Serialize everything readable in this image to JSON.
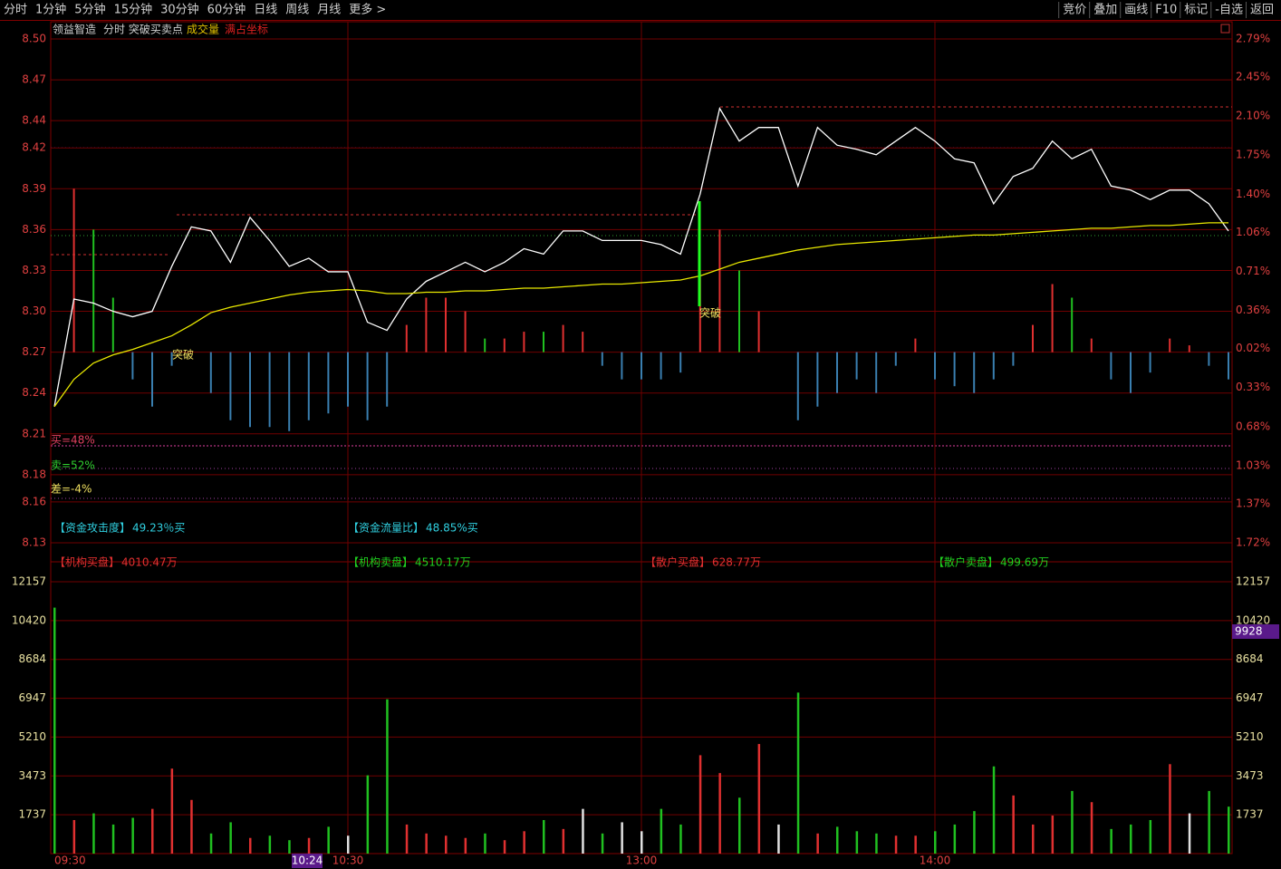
{
  "toolbar": {
    "left": [
      "分时",
      "1分钟",
      "5分钟",
      "15分钟",
      "30分钟",
      "60分钟",
      "日线",
      "周线",
      "月线",
      "更多 >"
    ],
    "right": [
      "竞价",
      "叠加",
      "画线",
      "F10",
      "标记",
      "-自选",
      "返回"
    ]
  },
  "chart_data": [
    {
      "type": "line",
      "title": "领益智造",
      "subtitle": "分时 突破买卖点",
      "notes": [
        {
          "text": "成交量",
          "color": "#e0c000"
        },
        {
          "text": "满占坐标",
          "color": "#e02020"
        }
      ],
      "series": [
        {
          "color": "#ffffff",
          "values": [
            8.23,
            8.309,
            8.306,
            8.3,
            8.296,
            8.3,
            8.333,
            8.362,
            8.359,
            8.336,
            8.369,
            8.352,
            8.333,
            8.339,
            8.329,
            8.329,
            8.292,
            8.286,
            8.309,
            8.322,
            8.329,
            8.336,
            8.329,
            8.336,
            8.346,
            8.342,
            8.359,
            8.359,
            8.352,
            8.352,
            8.352,
            8.349,
            8.342,
            8.386,
            8.449,
            8.425,
            8.435,
            8.435,
            8.392,
            8.435,
            8.422,
            8.419,
            8.415,
            8.425,
            8.435,
            8.425,
            8.412,
            8.409,
            8.379,
            8.399,
            8.405,
            8.425,
            8.412,
            8.419,
            8.392,
            8.389,
            8.382,
            8.389,
            8.389,
            8.379,
            8.359
          ]
        },
        {
          "color": "#e8e800",
          "values": [
            8.23,
            8.25,
            8.262,
            8.268,
            8.272,
            8.277,
            8.282,
            8.29,
            8.299,
            8.303,
            8.306,
            8.309,
            8.312,
            8.314,
            8.315,
            8.316,
            8.315,
            8.313,
            8.313,
            8.314,
            8.314,
            8.315,
            8.315,
            8.316,
            8.317,
            8.317,
            8.318,
            8.319,
            8.32,
            8.32,
            8.321,
            8.322,
            8.323,
            8.326,
            8.331,
            8.336,
            8.339,
            8.342,
            8.345,
            8.347,
            8.349,
            8.35,
            8.351,
            8.352,
            8.353,
            8.354,
            8.355,
            8.356,
            8.356,
            8.357,
            8.358,
            8.359,
            8.36,
            8.361,
            8.361,
            8.362,
            8.363,
            8.363,
            8.364,
            8.365,
            8.365
          ]
        }
      ],
      "histogram": {
        "base": 8.27,
        "up_color": "#e03030",
        "down_color": "#20c020",
        "neg_color": "#3a7fb0",
        "values": [
          0,
          0.12,
          0.09,
          0.04,
          -0.02,
          -0.04,
          -0.01,
          0,
          -0.03,
          -0.05,
          -0.055,
          -0.055,
          -0.058,
          -0.05,
          -0.045,
          -0.04,
          -0.05,
          -0.04,
          0.02,
          0.04,
          0.04,
          0.03,
          0.01,
          0.01,
          0.015,
          0.015,
          0.02,
          0.015,
          -0.01,
          -0.02,
          -0.02,
          -0.02,
          -0.015,
          0.06,
          0.09,
          0.06,
          0.03,
          0,
          -0.05,
          -0.04,
          -0.03,
          -0.02,
          -0.03,
          -0.01,
          0.01,
          -0.02,
          -0.025,
          -0.03,
          -0.02,
          -0.01,
          0.02,
          0.05,
          0.04,
          0.01,
          -0.02,
          -0.03,
          -0.015,
          0.01,
          0.005,
          -0.01,
          -0.02
        ]
      },
      "ylim": [
        8.13,
        8.5
      ],
      "yticks": [
        {
          "value": 8.5,
          "label": "8.50"
        },
        8.47,
        8.44,
        8.42,
        8.39,
        8.36,
        8.33,
        {
          "value": 8.3,
          "label": "8.30"
        },
        8.27,
        8.24,
        8.21,
        8.18,
        8.16,
        8.13
      ],
      "y2lim": [
        -1.72,
        2.79
      ],
      "y2ticks": [
        {
          "value": 2.79,
          "label": "2.79%"
        },
        {
          "value": 2.45,
          "label": "2.45%"
        },
        {
          "value": 2.1,
          "label": "2.10%"
        },
        {
          "value": 1.75,
          "label": "1.75%"
        },
        {
          "value": 1.4,
          "label": "1.40%"
        },
        {
          "value": 1.06,
          "label": "1.06%"
        },
        {
          "value": 0.71,
          "label": "0.71%"
        },
        {
          "value": 0.36,
          "label": "0.36%"
        },
        {
          "value": 0.02,
          "label": "0.02%"
        },
        {
          "value": -0.33,
          "label": "0.33%"
        },
        {
          "value": -0.68,
          "label": "0.68%"
        },
        {
          "value": -1.03,
          "label": "1.03%"
        },
        {
          "value": -1.37,
          "label": "1.37%"
        },
        {
          "value": -1.72,
          "label": "1.72%"
        }
      ],
      "annotations": [
        "突破",
        "突破"
      ],
      "stats": [
        "买=48%",
        "卖=52%",
        "差=-4%"
      ],
      "indicators": [
        {
          "label": "【资金攻击度】",
          "value": "49.23％买",
          "color": "#30d0e0"
        },
        {
          "label": "【资金流量比】",
          "value": "48.85%买",
          "color": "#30d0e0"
        },
        {
          "label": "【机构买盘】",
          "value": "4010.47万",
          "color": "#e03030"
        },
        {
          "label": "【机构卖盘】",
          "value": "4510.17万",
          "color": "#20d020"
        },
        {
          "label": "【散户买盘】",
          "value": "628.77万",
          "color": "#e03030"
        },
        {
          "label": "【散户卖盘】",
          "value": "499.69万",
          "color": "#20d020"
        }
      ]
    },
    {
      "type": "bar",
      "categories": [
        "09:30",
        null,
        null,
        null,
        null,
        null,
        null,
        null,
        null,
        null,
        null,
        null,
        null,
        null,
        null,
        "10:30",
        null,
        null,
        null,
        null,
        null,
        null,
        null,
        null,
        null,
        null,
        null,
        null,
        null,
        null,
        "13:00",
        null,
        null,
        null,
        null,
        null,
        null,
        null,
        null,
        null,
        null,
        null,
        null,
        null,
        null,
        "14:00",
        null,
        null,
        null,
        null,
        null,
        null,
        null,
        null,
        null,
        null,
        null,
        null,
        null,
        null,
        null
      ],
      "values": [
        11000,
        1500,
        1800,
        1300,
        1600,
        2000,
        3800,
        2400,
        900,
        1400,
        700,
        800,
        600,
        700,
        1200,
        800,
        3500,
        6900,
        1300,
        900,
        800,
        700,
        900,
        600,
        1000,
        1500,
        1100,
        2000,
        900,
        1400,
        1000,
        2000,
        1300,
        4400,
        3600,
        2500,
        4900,
        1300,
        7200,
        900,
        1200,
        1000,
        900,
        800,
        800,
        1000,
        1300,
        1900,
        3900,
        2600,
        1300,
        1700,
        2800,
        2300,
        1100,
        1300,
        1500,
        4000,
        1800,
        2800,
        2100
      ],
      "ylim": [
        0,
        12157
      ],
      "yticks": [
        1737,
        3473,
        5210,
        6947,
        8684,
        10420,
        12157
      ],
      "cursor_value": 9928,
      "cursor_time": "10:24"
    }
  ]
}
